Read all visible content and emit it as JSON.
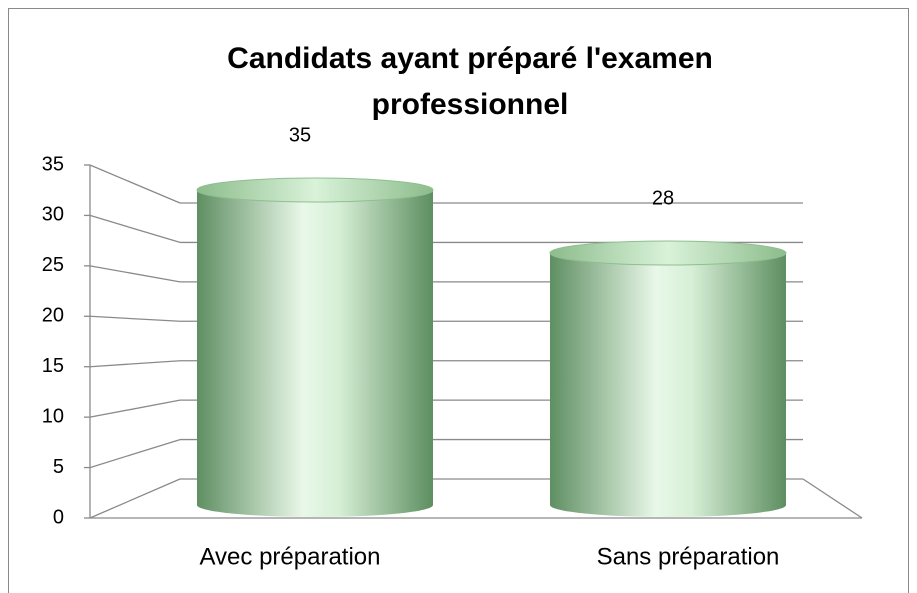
{
  "chart_data": {
    "type": "bar",
    "title": [
      "Candidats  ayant préparé l'examen",
      "professionnel"
    ],
    "categories": [
      "Avec préparation",
      "Sans préparation"
    ],
    "values": [
      35,
      28
    ],
    "color": "#8fbf8f",
    "ylim": [
      0,
      35
    ],
    "yticks": [
      0,
      5,
      10,
      15,
      20,
      25,
      30,
      35
    ],
    "grid": true
  }
}
